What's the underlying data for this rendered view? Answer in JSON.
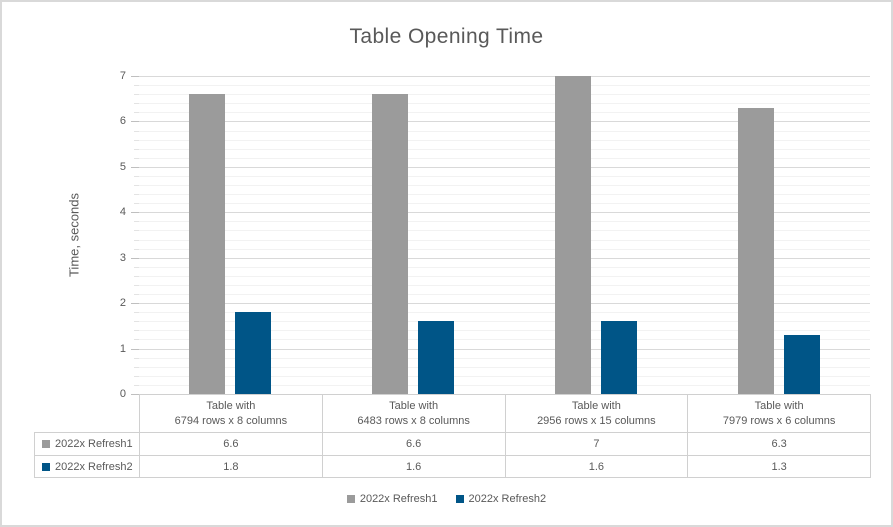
{
  "chart_data": {
    "type": "bar",
    "title": "Table Opening Time",
    "ylabel": "Time, seconds",
    "xlabel": "",
    "ylim": [
      0,
      7
    ],
    "y_major_unit": 1,
    "y_minor_unit": 0.2,
    "grid": true,
    "legend_position": "bottom",
    "show_data_table": true,
    "categories": [
      [
        "Table with",
        "6794 rows x 8 columns"
      ],
      [
        "Table with",
        "6483 rows x 8 columns"
      ],
      [
        "Table with",
        "2956 rows x 15 columns"
      ],
      [
        "Table with",
        "7979 rows x 6 columns"
      ]
    ],
    "series": [
      {
        "name": "2022x Refresh1",
        "color": "#9B9B9B",
        "values": [
          6.6,
          6.6,
          7,
          6.3
        ]
      },
      {
        "name": "2022x Refresh2",
        "color": "#005587",
        "values": [
          1.8,
          1.6,
          1.6,
          1.3
        ]
      }
    ]
  },
  "colors": {
    "text": "#595959",
    "grid_major": "#D9D9D9",
    "grid_minor": "#F2F2F2",
    "tick_major": "#BFBFBF",
    "tick_minor": "#E3E3E3",
    "table_border": "#D0D0D0",
    "frame_border": "#D9D9D9"
  }
}
